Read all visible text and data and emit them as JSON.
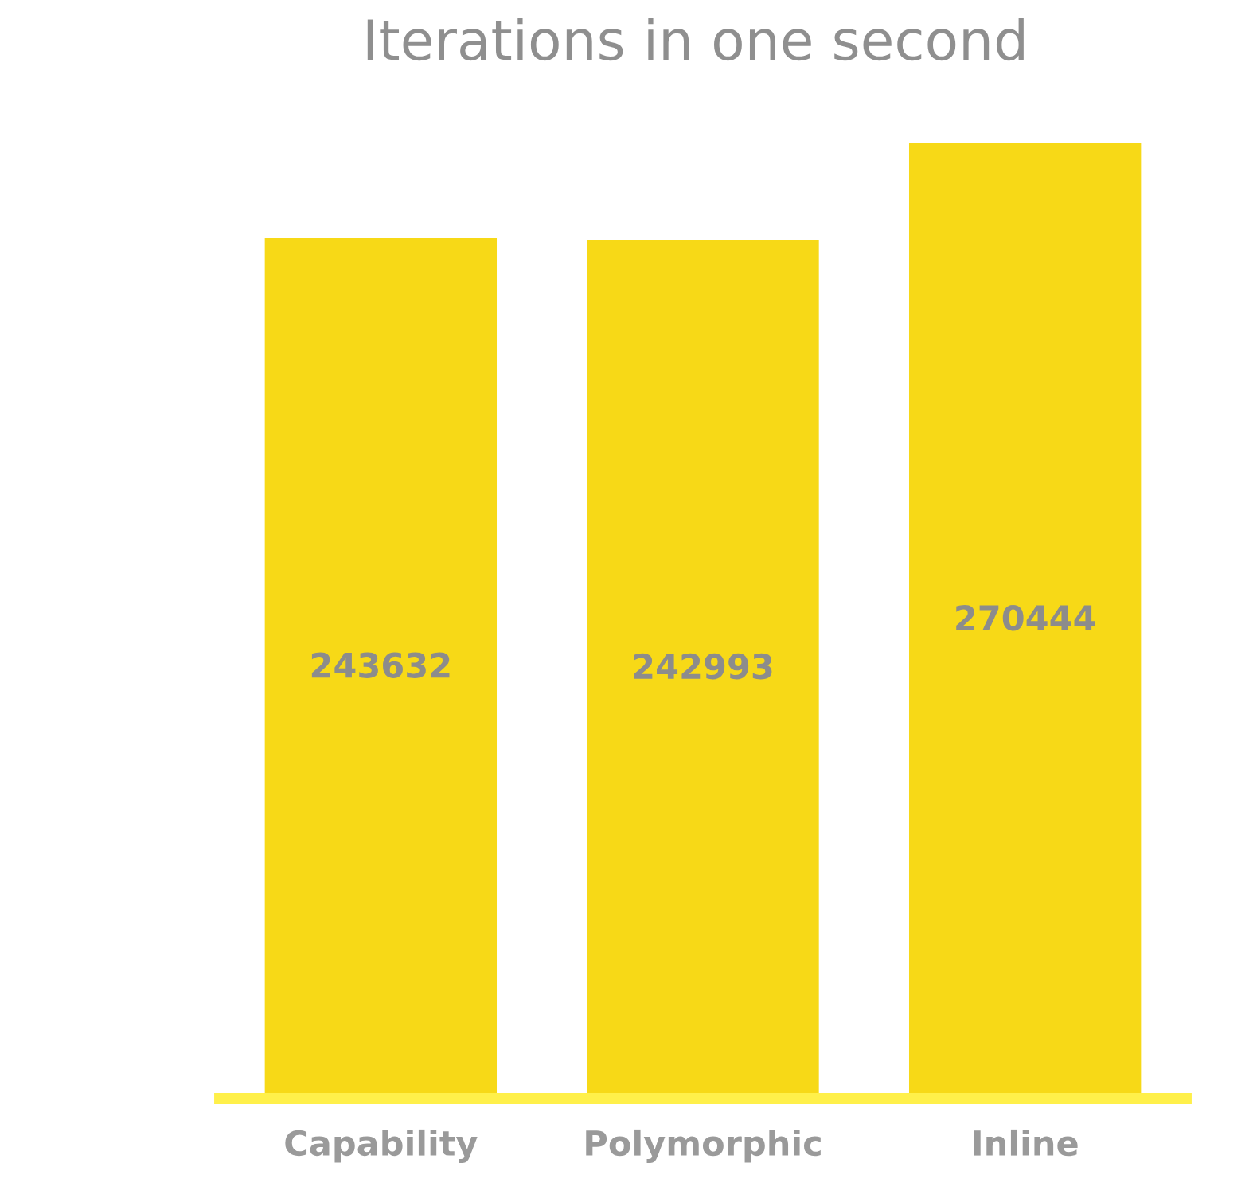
{
  "chart_data": {
    "type": "bar",
    "title": "Iterations in one second",
    "categories": [
      "Capability",
      "Polymorphic",
      "Inline"
    ],
    "values": [
      243632,
      242993,
      270444
    ],
    "color": "#f7d917",
    "data_labels": true,
    "grid": false,
    "legend": false
  }
}
